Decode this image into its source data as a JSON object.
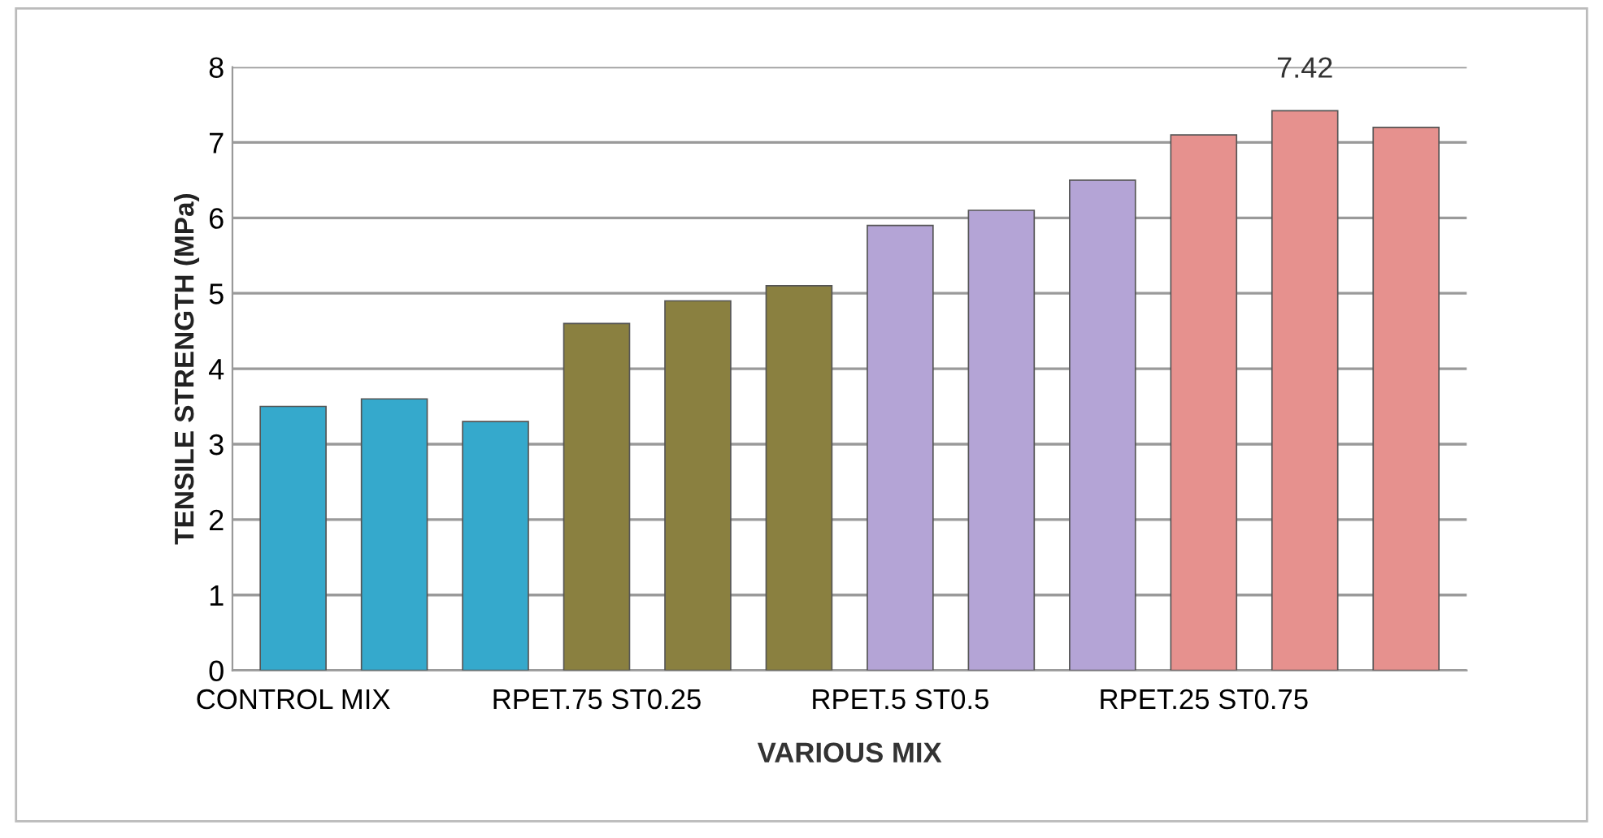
{
  "chart_data": {
    "type": "bar",
    "xlabel": "VARIOUS MIX",
    "ylabel": "TENSILE STRENGTH (MPa)",
    "categories": [
      "CONTROL MIX",
      null,
      null,
      "RPET.75 ST0.25",
      null,
      null,
      "RPET.5 ST0.5",
      null,
      null,
      "RPET.25 ST0.75",
      null,
      null
    ],
    "values": [
      3.5,
      3.6,
      3.3,
      4.6,
      4.9,
      5.1,
      5.9,
      6.1,
      6.5,
      7.1,
      7.42,
      7.2
    ],
    "colors": [
      "#35a9cc",
      "#35a9cc",
      "#35a9cc",
      "#8a8040",
      "#8a8040",
      "#8a8040",
      "#b4a4d6",
      "#b4a4d6",
      "#b4a4d6",
      "#e6918e",
      "#e6918e",
      "#e6918e"
    ],
    "value_labels": [
      null,
      null,
      null,
      null,
      null,
      null,
      null,
      null,
      null,
      null,
      "7.42",
      null
    ],
    "ylim": [
      0,
      8
    ],
    "yticks": [
      0,
      1,
      2,
      3,
      4,
      5,
      6,
      7,
      8
    ],
    "grid": "y"
  }
}
